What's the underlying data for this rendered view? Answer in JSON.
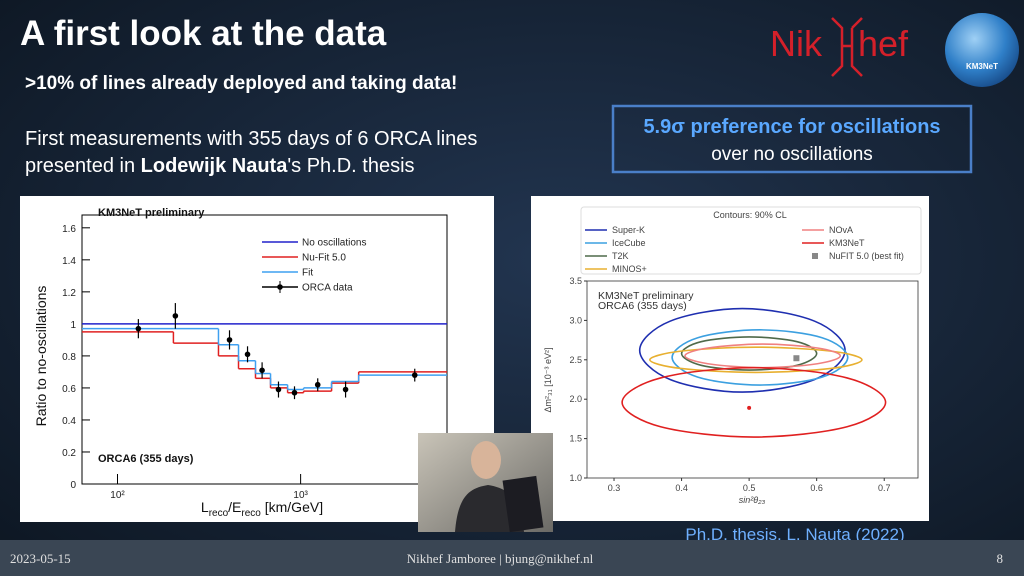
{
  "header": {
    "title": "A first look at the data",
    "logo_text": [
      "Nik",
      "hef"
    ],
    "badge": "KM3NeT"
  },
  "subtitle": ">10% of lines already deployed and taking data!",
  "body": {
    "line1": "First measurements with 355 days of 6 ORCA lines",
    "line2": [
      "presented in ",
      "Lodewijk Nauta",
      "'s Ph.D. thesis"
    ]
  },
  "highlight": {
    "line1": "5.9σ preference for oscillations",
    "line2": "over no oscillations"
  },
  "caption": "Ph.D. thesis, L. Nauta (2022)",
  "footer": {
    "date": "2023-05-15",
    "center": "Nikhef Jamboree | bjung@nikhef.nl",
    "page": "8"
  },
  "chart_data": [
    {
      "type": "histogram",
      "title": "KM3NeT preliminary",
      "annotation": "ORCA6 (355 days)",
      "x_label": [
        "L",
        "reco",
        "/E",
        "reco",
        " [km/GeV]"
      ],
      "y_label": "Ratio to no-oscillations",
      "xscale": "log",
      "xlim": [
        64,
        6300
      ],
      "ylim": [
        0,
        1.68
      ],
      "xticks": [
        {
          "value": 100,
          "label": "10²"
        },
        {
          "value": 1000,
          "label": "10³"
        }
      ],
      "yticks": [
        0,
        0.2,
        0.4,
        0.6,
        0.8,
        1,
        1.2,
        1.4,
        1.6
      ],
      "grid": false,
      "legend": "upper right",
      "reference": {
        "name": "No oscillations",
        "color": "#2222cc",
        "value": 1
      },
      "bins": [
        64,
        202,
        356,
        458,
        567,
        685,
        849,
        1038,
        1476,
        2075,
        6300
      ],
      "series": [
        {
          "name": "Nu-Fit 5.0",
          "color": "#e02020",
          "values": [
            0.95,
            0.88,
            0.8,
            0.72,
            0.66,
            0.6,
            0.57,
            0.58,
            0.63,
            0.7
          ]
        },
        {
          "name": "Fit",
          "color": "#3fa0f0",
          "values": [
            0.97,
            0.97,
            0.87,
            0.77,
            0.69,
            0.62,
            0.59,
            0.6,
            0.64,
            0.68
          ]
        }
      ],
      "points": {
        "name": "ORCA data",
        "color": "#000000",
        "x": [
          130,
          207,
          409,
          513,
          616,
          757,
          926,
          1240,
          1760,
          4200
        ],
        "y": [
          0.97,
          1.05,
          0.9,
          0.81,
          0.71,
          0.59,
          0.57,
          0.62,
          0.59,
          0.68
        ],
        "yerr": [
          0.06,
          0.08,
          0.06,
          0.05,
          0.05,
          0.05,
          0.04,
          0.04,
          0.05,
          0.04
        ]
      }
    },
    {
      "type": "contour",
      "legend_title": "Contours: 90% CL",
      "annotation": [
        "KM3NeT preliminary",
        "ORCA6 (355 days)"
      ],
      "x_label": "sin²θ₂₃",
      "y_label": "Δm²₃₁ [10⁻³ eV²]",
      "xlim": [
        0.26,
        0.75
      ],
      "ylim": [
        1.0,
        3.5
      ],
      "xticks": [
        0.3,
        0.4,
        0.5,
        0.6,
        0.7
      ],
      "yticks": [
        {
          "value": 1,
          "label": "1.0"
        },
        1.5,
        {
          "value": 2,
          "label": "2.0"
        },
        2.5,
        {
          "value": 3,
          "label": "3.0"
        },
        3.5
      ],
      "series": [
        {
          "name": "Super-K",
          "color": "#1f2fb0",
          "x": [
            0.642,
            0.597,
            0.49,
            0.383,
            0.338,
            0.383,
            0.49,
            0.597
          ],
          "y": [
            2.62,
            2.99,
            3.15,
            2.99,
            2.62,
            2.25,
            2.09,
            2.25
          ]
        },
        {
          "name": "IceCube",
          "color": "#3ca0e0",
          "x": [
            0.646,
            0.608,
            0.516,
            0.424,
            0.386,
            0.424,
            0.516,
            0.608
          ],
          "y": [
            2.53,
            2.78,
            2.88,
            2.78,
            2.53,
            2.28,
            2.18,
            2.28
          ]
        },
        {
          "name": "T2K",
          "color": "#4f6a4a",
          "x": [
            0.6,
            0.571,
            0.5,
            0.429,
            0.4,
            0.429,
            0.5,
            0.571
          ],
          "y": [
            2.58,
            2.73,
            2.79,
            2.73,
            2.58,
            2.43,
            2.37,
            2.43
          ]
        },
        {
          "name": "MINOS+",
          "color": "#e8b030",
          "x": [
            0.667,
            0.621,
            0.51,
            0.399,
            0.353,
            0.399,
            0.51,
            0.621
          ],
          "y": [
            2.5,
            2.61,
            2.66,
            2.61,
            2.5,
            2.39,
            2.34,
            2.39
          ]
        },
        {
          "name": "NOvA",
          "color": "#f08080",
          "x": [
            0.635,
            0.601,
            0.52,
            0.439,
            0.405,
            0.439,
            0.52,
            0.601
          ],
          "y": [
            2.55,
            2.65,
            2.7,
            2.65,
            2.55,
            2.45,
            2.4,
            2.45
          ]
        },
        {
          "name": "KM3NeT",
          "color": "#e02020",
          "x": [
            0.702,
            0.645,
            0.507,
            0.369,
            0.312,
            0.369,
            0.507,
            0.645
          ],
          "y": [
            1.96,
            2.27,
            2.4,
            2.27,
            1.96,
            1.65,
            1.52,
            1.65
          ],
          "best_fit": {
            "x": 0.5,
            "y": 1.89
          }
        },
        {
          "name": "NuFIT 5.0 (best fit)",
          "color": "#888888",
          "marker": "square",
          "x": [
            0.57
          ],
          "y": [
            2.52
          ]
        }
      ]
    }
  ]
}
